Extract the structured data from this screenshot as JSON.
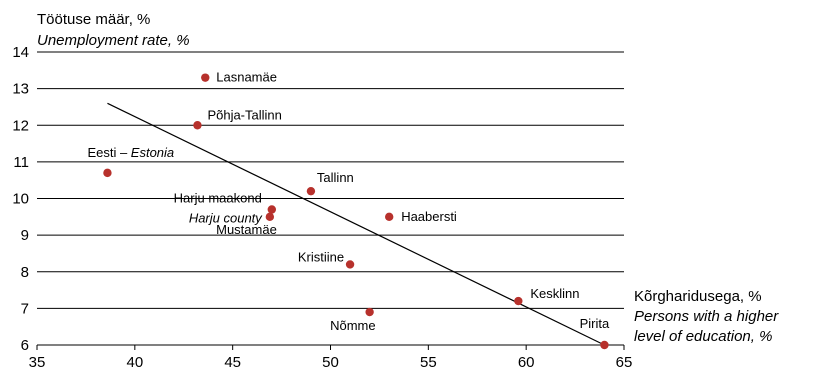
{
  "chart_data": {
    "type": "scatter",
    "title": "",
    "ylabel": "Töötuse määr, %",
    "ylabel_en": "Unemployment rate, %",
    "xlabel": "Kõrgharidusega, %",
    "xlabel_en_line1": "Persons with a higher",
    "xlabel_en_line2": "level of education, %",
    "xlim": [
      35,
      65
    ],
    "ylim": [
      6,
      14
    ],
    "xticks": [
      "35",
      "40",
      "45",
      "50",
      "55",
      "60",
      "65"
    ],
    "yticks": [
      "6",
      "7",
      "8",
      "9",
      "10",
      "11",
      "12",
      "13",
      "14"
    ],
    "grid": "horizontal",
    "point_color": "#b7312c",
    "trendline": {
      "x": [
        38.6,
        64.0
      ],
      "y": [
        12.6,
        6.0
      ]
    },
    "points": [
      {
        "label": "Lasnamäe",
        "x": 43.6,
        "y": 13.3
      },
      {
        "label": "Põhja-Tallinn",
        "x": 43.2,
        "y": 12.0
      },
      {
        "label": "Eesti",
        "label_en": "Estonia",
        "x": 38.6,
        "y": 10.7
      },
      {
        "label": "Tallinn",
        "x": 49.0,
        "y": 10.2
      },
      {
        "label": "Harju maakond",
        "label_en": "Harju county",
        "x": 47.0,
        "y": 9.7
      },
      {
        "label": "Mustamäe",
        "x": 46.9,
        "y": 9.5
      },
      {
        "label": "Haabersti",
        "x": 53.0,
        "y": 9.5
      },
      {
        "label": "Kristiine",
        "x": 51.0,
        "y": 8.2
      },
      {
        "label": "Kesklinn",
        "x": 59.6,
        "y": 7.2
      },
      {
        "label": "Nõmme",
        "x": 52.0,
        "y": 6.9
      },
      {
        "label": "Pirita",
        "x": 64.0,
        "y": 6.0
      }
    ]
  },
  "labels": {
    "eesti_sep": " – "
  }
}
